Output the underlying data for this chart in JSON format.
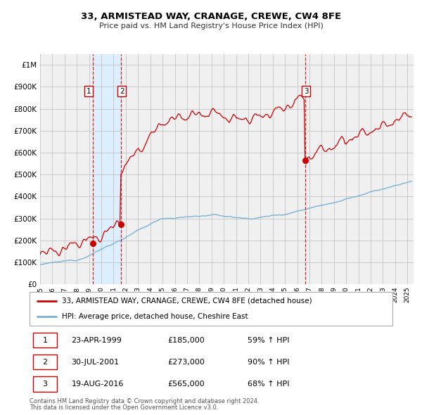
{
  "title": "33, ARMISTEAD WAY, CRANAGE, CREWE, CW4 8FE",
  "subtitle": "Price paid vs. HM Land Registry's House Price Index (HPI)",
  "legend_line1": "33, ARMISTEAD WAY, CRANAGE, CREWE, CW4 8FE (detached house)",
  "legend_line2": "HPI: Average price, detached house, Cheshire East",
  "footnote1": "Contains HM Land Registry data © Crown copyright and database right 2024.",
  "footnote2": "This data is licensed under the Open Government Licence v3.0.",
  "transactions": [
    {
      "label": "1",
      "date": "23-APR-1999",
      "date_num": 1999.31,
      "price": 185000,
      "hpi_pct": "59% ↑ HPI"
    },
    {
      "label": "2",
      "date": "30-JUL-2001",
      "date_num": 2001.58,
      "price": 273000,
      "hpi_pct": "90% ↑ HPI"
    },
    {
      "label": "3",
      "date": "19-AUG-2016",
      "date_num": 2016.63,
      "price": 565000,
      "hpi_pct": "68% ↑ HPI"
    }
  ],
  "red_line_color": "#cc0000",
  "blue_line_color": "#7ab0d4",
  "vline_color": "#cc0000",
  "shade_color": "#ddeeff",
  "background_color": "#f0f0f0",
  "grid_color": "#cccccc",
  "ylim": [
    0,
    1050000
  ],
  "yticks": [
    0,
    100000,
    200000,
    300000,
    400000,
    500000,
    600000,
    700000,
    800000,
    900000,
    1000000
  ],
  "ytick_labels": [
    "£0",
    "£100K",
    "£200K",
    "£300K",
    "£400K",
    "£500K",
    "£600K",
    "£700K",
    "£800K",
    "£900K",
    "£1M"
  ],
  "xlim_start": 1995.0,
  "xlim_end": 2025.5
}
